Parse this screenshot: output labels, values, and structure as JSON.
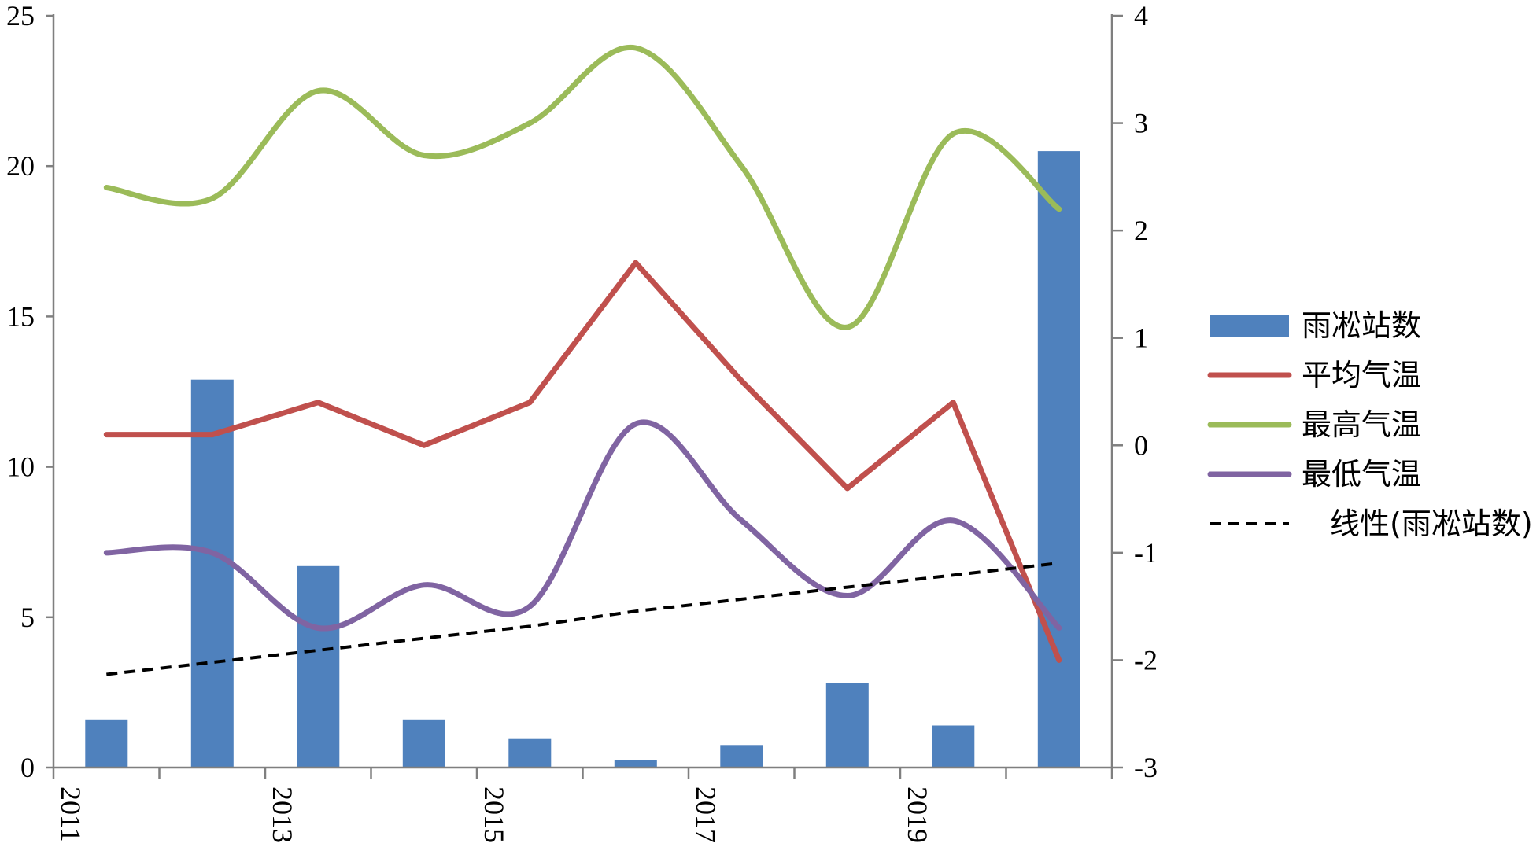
{
  "chart_data": {
    "type": "bar+line",
    "title": "",
    "x_categories": [
      "2011",
      "2012",
      "2013",
      "2014",
      "2015",
      "2016",
      "2017",
      "2018",
      "2019",
      "2020"
    ],
    "x_tick_labels_shown": [
      "2011",
      "2013",
      "2015",
      "2017",
      "2019"
    ],
    "left_axis": {
      "ylim": [
        0,
        25
      ],
      "ticks": [
        "0",
        "5",
        "10",
        "15",
        "20",
        "25"
      ]
    },
    "right_axis": {
      "ylim": [
        -3,
        4
      ],
      "ticks": [
        "-3",
        "-2",
        "-1",
        "0",
        "1",
        "2",
        "3",
        "4"
      ]
    },
    "series": [
      {
        "name": "雨凇站数",
        "kind": "bar",
        "axis": "left",
        "color": "#4F81BD",
        "values": [
          1.6,
          12.9,
          6.7,
          1.6,
          0.95,
          0.25,
          0.75,
          2.8,
          1.4,
          20.5
        ]
      },
      {
        "name": "平均气温",
        "kind": "line",
        "axis": "right",
        "color": "#C0504D",
        "values": [
          0.1,
          0.1,
          0.4,
          0.0,
          0.4,
          1.7,
          0.6,
          -0.4,
          0.4,
          -2.0
        ]
      },
      {
        "name": "最高气温",
        "kind": "smooth-line",
        "axis": "right",
        "color": "#9BBB59",
        "values": [
          2.4,
          2.3,
          3.3,
          2.7,
          3.0,
          3.7,
          2.6,
          1.1,
          2.9,
          2.2
        ]
      },
      {
        "name": "最低气温",
        "kind": "smooth-line",
        "axis": "right",
        "color": "#8064A2",
        "values": [
          -1.0,
          -1.0,
          -1.7,
          -1.3,
          -1.5,
          0.2,
          -0.7,
          -1.4,
          -0.7,
          -1.7
        ]
      },
      {
        "name": "线性(雨凇站数)",
        "kind": "trendline",
        "axis": "left",
        "color": "#000000",
        "values": [
          3.1,
          3.5,
          3.9,
          4.3,
          4.7,
          5.2,
          5.6,
          6.0,
          6.4,
          6.8
        ]
      }
    ],
    "legend": {
      "position": "right",
      "entries": [
        "雨凇站数",
        "平均气温",
        "最高气温",
        "最低气温",
        "线性(雨凇站数)"
      ]
    }
  }
}
